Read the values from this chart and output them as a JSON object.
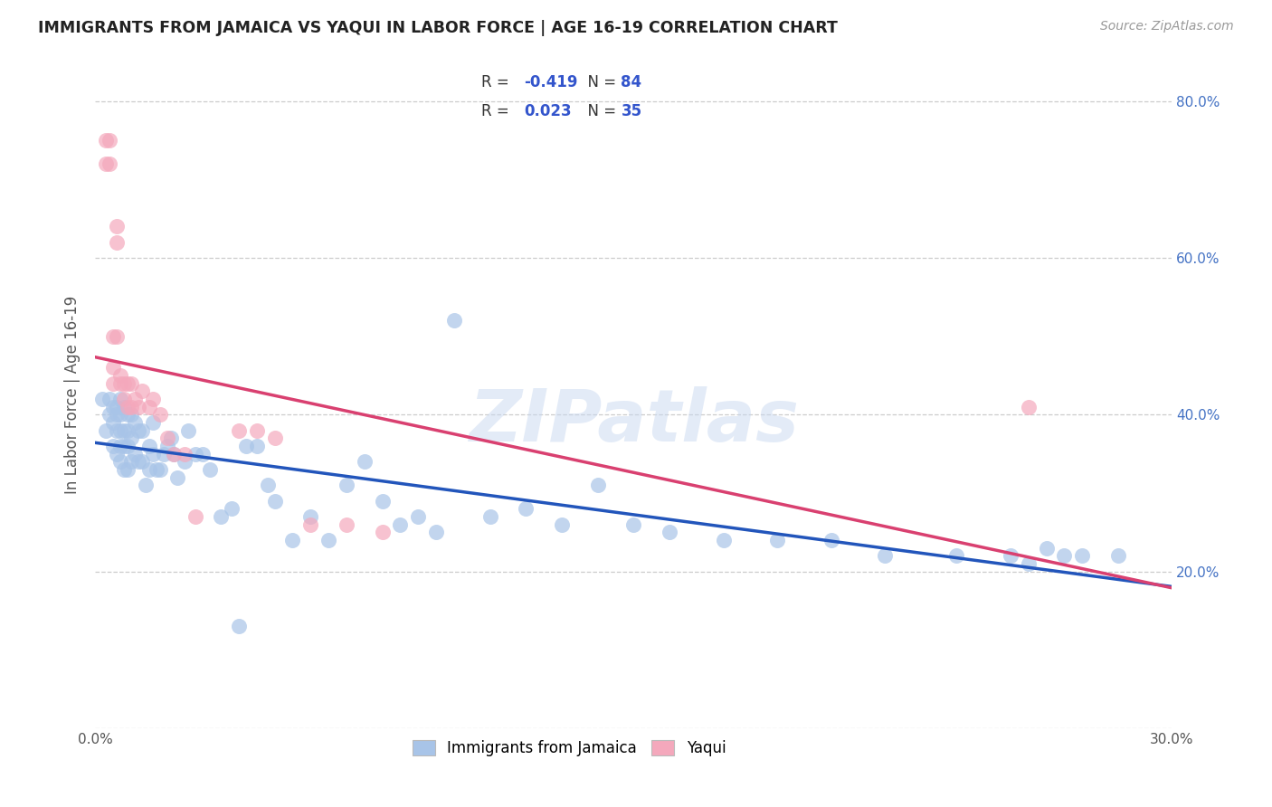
{
  "title": "IMMIGRANTS FROM JAMAICA VS YAQUI IN LABOR FORCE | AGE 16-19 CORRELATION CHART",
  "source": "Source: ZipAtlas.com",
  "ylabel": "In Labor Force | Age 16-19",
  "legend_labels": [
    "Immigrants from Jamaica",
    "Yaqui"
  ],
  "r_jamaica": -0.419,
  "n_jamaica": 84,
  "r_yaqui": 0.023,
  "n_yaqui": 35,
  "xlim": [
    0.0,
    0.3
  ],
  "ylim": [
    0.0,
    0.85
  ],
  "x_ticks": [
    0.0,
    0.05,
    0.1,
    0.15,
    0.2,
    0.25,
    0.3
  ],
  "y_ticks": [
    0.0,
    0.2,
    0.4,
    0.6,
    0.8
  ],
  "color_jamaica": "#a8c4e8",
  "color_yaqui": "#f4a8bc",
  "line_color_jamaica": "#2255bb",
  "line_color_yaqui": "#d94070",
  "background_color": "#ffffff",
  "watermark": "ZIPatlas",
  "jamaica_x": [
    0.002,
    0.003,
    0.004,
    0.004,
    0.005,
    0.005,
    0.005,
    0.006,
    0.006,
    0.006,
    0.006,
    0.007,
    0.007,
    0.007,
    0.007,
    0.007,
    0.008,
    0.008,
    0.008,
    0.008,
    0.009,
    0.009,
    0.009,
    0.009,
    0.01,
    0.01,
    0.01,
    0.011,
    0.011,
    0.012,
    0.012,
    0.013,
    0.013,
    0.014,
    0.015,
    0.015,
    0.016,
    0.016,
    0.017,
    0.018,
    0.019,
    0.02,
    0.021,
    0.022,
    0.023,
    0.025,
    0.026,
    0.028,
    0.03,
    0.032,
    0.035,
    0.038,
    0.04,
    0.042,
    0.045,
    0.048,
    0.05,
    0.055,
    0.06,
    0.065,
    0.07,
    0.075,
    0.08,
    0.085,
    0.09,
    0.095,
    0.1,
    0.11,
    0.12,
    0.13,
    0.14,
    0.15,
    0.16,
    0.175,
    0.19,
    0.205,
    0.22,
    0.24,
    0.255,
    0.26,
    0.265,
    0.27,
    0.275,
    0.285
  ],
  "jamaica_y": [
    0.42,
    0.38,
    0.42,
    0.4,
    0.41,
    0.39,
    0.36,
    0.41,
    0.4,
    0.38,
    0.35,
    0.42,
    0.4,
    0.38,
    0.36,
    0.34,
    0.41,
    0.38,
    0.36,
    0.33,
    0.4,
    0.38,
    0.36,
    0.33,
    0.4,
    0.37,
    0.34,
    0.39,
    0.35,
    0.38,
    0.34,
    0.38,
    0.34,
    0.31,
    0.36,
    0.33,
    0.39,
    0.35,
    0.33,
    0.33,
    0.35,
    0.36,
    0.37,
    0.35,
    0.32,
    0.34,
    0.38,
    0.35,
    0.35,
    0.33,
    0.27,
    0.28,
    0.13,
    0.36,
    0.36,
    0.31,
    0.29,
    0.24,
    0.27,
    0.24,
    0.31,
    0.34,
    0.29,
    0.26,
    0.27,
    0.25,
    0.52,
    0.27,
    0.28,
    0.26,
    0.31,
    0.26,
    0.25,
    0.24,
    0.24,
    0.24,
    0.22,
    0.22,
    0.22,
    0.21,
    0.23,
    0.22,
    0.22,
    0.22
  ],
  "yaqui_x": [
    0.003,
    0.003,
    0.004,
    0.004,
    0.005,
    0.005,
    0.005,
    0.006,
    0.006,
    0.006,
    0.007,
    0.007,
    0.008,
    0.008,
    0.009,
    0.009,
    0.01,
    0.01,
    0.011,
    0.012,
    0.013,
    0.015,
    0.016,
    0.018,
    0.02,
    0.022,
    0.025,
    0.028,
    0.04,
    0.045,
    0.05,
    0.06,
    0.07,
    0.08,
    0.26
  ],
  "yaqui_y": [
    0.75,
    0.72,
    0.75,
    0.72,
    0.5,
    0.46,
    0.44,
    0.64,
    0.62,
    0.5,
    0.45,
    0.44,
    0.44,
    0.42,
    0.44,
    0.41,
    0.44,
    0.41,
    0.42,
    0.41,
    0.43,
    0.41,
    0.42,
    0.4,
    0.37,
    0.35,
    0.35,
    0.27,
    0.38,
    0.38,
    0.37,
    0.26,
    0.26,
    0.25,
    0.41
  ]
}
